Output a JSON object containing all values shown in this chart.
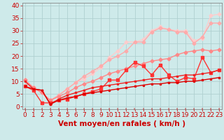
{
  "title": "",
  "xlabel": "Vent moyen/en rafales ( km/h )",
  "ylabel": "",
  "background_color": "#ceeaea",
  "grid_color": "#b0d0d0",
  "xlim": [
    -0.3,
    23.3
  ],
  "ylim": [
    -1,
    41
  ],
  "yticks": [
    0,
    5,
    10,
    15,
    20,
    25,
    30,
    35,
    40
  ],
  "xticks": [
    0,
    1,
    2,
    3,
    4,
    5,
    6,
    7,
    8,
    9,
    10,
    11,
    12,
    13,
    14,
    15,
    16,
    17,
    18,
    19,
    20,
    21,
    22,
    23
  ],
  "series": [
    {
      "comment": "darkest red - lowest line, fairly flat ~8-14",
      "x": [
        0,
        1,
        2,
        3,
        4,
        5,
        6,
        7,
        8,
        9,
        10,
        11,
        12,
        13,
        14,
        15,
        16,
        17,
        18,
        19,
        20,
        21,
        22,
        23
      ],
      "y": [
        8.0,
        7.0,
        6.5,
        1.0,
        2.5,
        3.5,
        4.0,
        5.0,
        5.5,
        6.0,
        6.5,
        7.0,
        7.5,
        8.0,
        8.5,
        9.0,
        9.0,
        9.5,
        9.5,
        10.0,
        10.0,
        10.5,
        11.0,
        11.5
      ],
      "color": "#dd0000",
      "alpha": 1.0,
      "lw": 1.0,
      "marker": "s",
      "ms": 2.0
    },
    {
      "comment": "slightly lighter - second from bottom, rises to ~14",
      "x": [
        0,
        1,
        2,
        3,
        4,
        5,
        6,
        7,
        8,
        9,
        10,
        11,
        12,
        13,
        14,
        15,
        16,
        17,
        18,
        19,
        20,
        21,
        22,
        23
      ],
      "y": [
        10.0,
        7.0,
        6.5,
        1.0,
        3.0,
        4.5,
        5.5,
        6.5,
        7.5,
        8.0,
        8.5,
        9.0,
        9.5,
        10.0,
        10.5,
        11.0,
        11.0,
        11.5,
        12.0,
        12.5,
        12.5,
        13.0,
        13.5,
        14.5
      ],
      "color": "#ee2222",
      "alpha": 1.0,
      "lw": 1.0,
      "marker": "s",
      "ms": 2.0
    },
    {
      "comment": "medium red - jagged line reaching ~20 at x=21",
      "x": [
        0,
        1,
        2,
        3,
        4,
        5,
        6,
        7,
        8,
        9,
        10,
        11,
        12,
        13,
        14,
        15,
        16,
        17,
        18,
        19,
        20,
        21,
        22,
        23
      ],
      "y": [
        8.0,
        6.5,
        1.5,
        1.5,
        2.5,
        3.0,
        4.0,
        5.0,
        6.0,
        7.0,
        10.5,
        10.5,
        14.5,
        17.5,
        16.0,
        12.5,
        16.5,
        12.5,
        10.0,
        11.5,
        11.0,
        19.5,
        13.5,
        14.5
      ],
      "color": "#ff3333",
      "alpha": 1.0,
      "lw": 1.0,
      "marker": "s",
      "ms": 2.5
    },
    {
      "comment": "light pink-red - smooth rising to ~22",
      "x": [
        0,
        1,
        2,
        3,
        4,
        5,
        6,
        7,
        8,
        9,
        10,
        11,
        12,
        13,
        14,
        15,
        16,
        17,
        18,
        19,
        20,
        21,
        22,
        23
      ],
      "y": [
        10.5,
        7.5,
        5.5,
        2.5,
        4.0,
        5.5,
        7.5,
        9.0,
        10.0,
        11.5,
        13.0,
        14.0,
        15.0,
        16.0,
        17.0,
        18.0,
        18.5,
        19.0,
        20.5,
        21.5,
        22.0,
        22.5,
        22.0,
        22.5
      ],
      "color": "#ff8888",
      "alpha": 1.0,
      "lw": 1.0,
      "marker": "D",
      "ms": 2.5
    },
    {
      "comment": "light pink - rises steeply to ~33",
      "x": [
        0,
        1,
        2,
        3,
        4,
        5,
        6,
        7,
        8,
        9,
        10,
        11,
        12,
        13,
        14,
        15,
        16,
        17,
        18,
        19,
        20,
        21,
        22,
        23
      ],
      "y": [
        10.5,
        7.5,
        5.5,
        2.5,
        4.5,
        7.0,
        9.5,
        12.0,
        14.0,
        16.0,
        18.5,
        20.0,
        22.0,
        25.5,
        25.5,
        29.5,
        31.0,
        30.5,
        29.5,
        29.5,
        25.0,
        27.5,
        33.0,
        33.0
      ],
      "color": "#ffaaaa",
      "alpha": 1.0,
      "lw": 1.0,
      "marker": "D",
      "ms": 2.5
    },
    {
      "comment": "lightest pink - highest line, peak ~36 at x=22",
      "x": [
        0,
        1,
        2,
        3,
        4,
        5,
        6,
        7,
        8,
        9,
        10,
        11,
        12,
        13,
        14,
        15,
        16,
        17,
        18,
        19,
        20,
        21,
        22,
        23
      ],
      "y": [
        10.5,
        7.5,
        5.5,
        2.5,
        4.5,
        7.0,
        9.5,
        11.0,
        13.0,
        15.5,
        19.5,
        22.0,
        25.5,
        25.5,
        26.5,
        30.0,
        31.5,
        30.5,
        30.0,
        30.0,
        26.0,
        27.0,
        36.0,
        36.5
      ],
      "color": "#ffcccc",
      "alpha": 1.0,
      "lw": 1.0,
      "marker": "D",
      "ms": 2.5
    }
  ],
  "xlabel_color": "#cc0000",
  "xlabel_fontsize": 7.5,
  "tick_fontsize": 6.5,
  "tick_color": "#cc0000",
  "axis_color": "#cc0000",
  "spine_color": "#888888"
}
